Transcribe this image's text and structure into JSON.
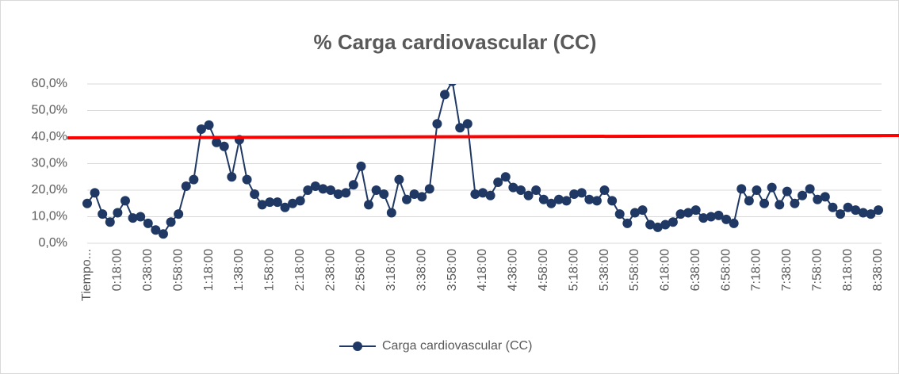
{
  "chart_data": {
    "type": "line",
    "title": "% Carga cardiovascular (CC)",
    "categories": [
      "Tiempo...",
      null,
      null,
      null,
      "0:18:00",
      null,
      null,
      null,
      "0:38:00",
      null,
      null,
      null,
      "0:58:00",
      null,
      null,
      null,
      "1:18:00",
      null,
      null,
      null,
      "1:38:00",
      null,
      null,
      null,
      "1:58:00",
      null,
      null,
      null,
      "2:18:00",
      null,
      null,
      null,
      "2:38:00",
      null,
      null,
      null,
      "2:58:00",
      null,
      null,
      null,
      "3:18:00",
      null,
      null,
      null,
      "3:38:00",
      null,
      null,
      null,
      "3:58:00",
      null,
      null,
      null,
      "4:18:00",
      null,
      null,
      null,
      "4:38:00",
      null,
      null,
      null,
      "4:58:00",
      null,
      null,
      null,
      "5:18:00",
      null,
      null,
      null,
      "5:38:00",
      null,
      null,
      null,
      "5:58:00",
      null,
      null,
      null,
      "6:18:00",
      null,
      null,
      null,
      "6:38:00",
      null,
      null,
      null,
      "6:58:00",
      null,
      null,
      null,
      "7:18:00",
      null,
      null,
      null,
      "7:38:00",
      null,
      null,
      null,
      "7:58:00",
      null,
      null,
      null,
      "8:18:00",
      null,
      null,
      null,
      "8:38:00"
    ],
    "series": [
      {
        "name": "Carga cardiovascular (CC)",
        "color": "#1f3864",
        "values": [
          15,
          19,
          11,
          8,
          11.5,
          16,
          9.5,
          10,
          7.5,
          5,
          3.5,
          8,
          11,
          21.5,
          24,
          43,
          44.5,
          38,
          36.5,
          25,
          39,
          24,
          18.5,
          14.5,
          15.5,
          15.5,
          13.5,
          15,
          16,
          20,
          21.5,
          20.5,
          20,
          18.5,
          19,
          22,
          29,
          14.5,
          20,
          18.5,
          11.5,
          24,
          16.5,
          18.5,
          17.5,
          20.5,
          45,
          56,
          61,
          43.5,
          45,
          18.5,
          19,
          18,
          23,
          25,
          21,
          20,
          18,
          20,
          16.5,
          15,
          16.5,
          16,
          18.5,
          19,
          16.5,
          16,
          20,
          16,
          11,
          7.5,
          11.5,
          12.5,
          7,
          6,
          7,
          8,
          11,
          11.5,
          12.5,
          9.5,
          10,
          10.5,
          9,
          7.5,
          20.5,
          16,
          20,
          15,
          21,
          14.5,
          19.5,
          15,
          18,
          20.5,
          16.5,
          17.5,
          13.5,
          11,
          13.5,
          12.5,
          11.5,
          11,
          12.5
        ]
      }
    ],
    "ylim": [
      0,
      60
    ],
    "yticks": [
      {
        "value": 0,
        "label": "0,0%"
      },
      {
        "value": 10,
        "label": "10,0%"
      },
      {
        "value": 20,
        "label": "20,0%"
      },
      {
        "value": 30,
        "label": "30,0%"
      },
      {
        "value": 40,
        "label": "40,0%"
      },
      {
        "value": 50,
        "label": "50,0%"
      },
      {
        "value": 60,
        "label": "60,0%"
      }
    ],
    "grid": true,
    "legend": "bottom",
    "threshold": 40,
    "threshold_color": "#ff0000"
  }
}
